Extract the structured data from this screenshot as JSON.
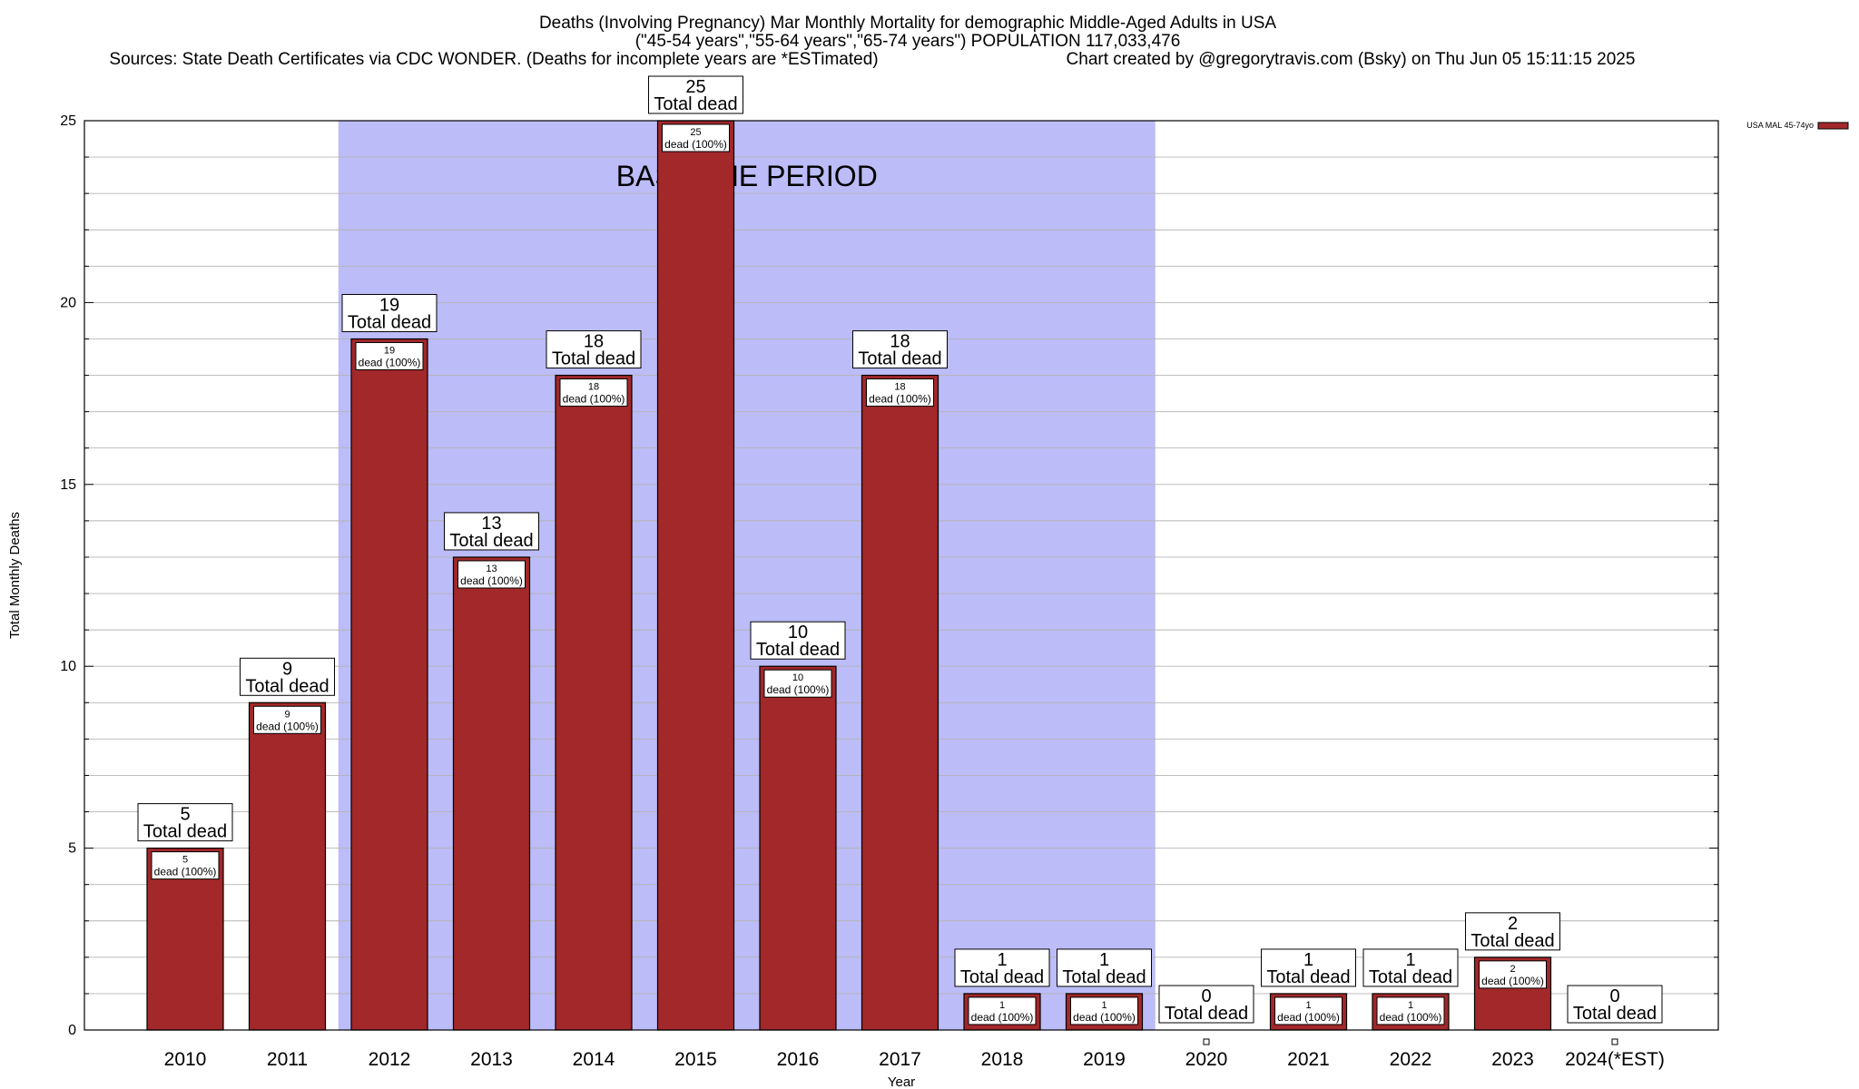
{
  "chart_data": {
    "type": "bar",
    "title_lines": [
      "Deaths (Involving Pregnancy) Mar Monthly Mortality for demographic Middle-Aged Adults in USA",
      "(\"45-54 years\",\"55-64 years\",\"65-74 years\") POPULATION 117,033,476"
    ],
    "sources_text": "Sources: State Death Certificates via CDC WONDER. (Deaths for incomplete years are *ESTimated)",
    "credit_text": "Chart created by @gregorytravis.com (Bsky) on Thu Jun 05 15:11:15 2025",
    "xlabel": "Year",
    "ylabel": "Total Monthly Deaths",
    "ylim": [
      0,
      25
    ],
    "yticks": [
      0,
      5,
      10,
      15,
      20,
      25
    ],
    "y_minor_step": 1,
    "categories": [
      "2010",
      "2011",
      "2012",
      "2013",
      "2014",
      "2015",
      "2016",
      "2017",
      "2018",
      "2019",
      "2020",
      "2021",
      "2022",
      "2023",
      "2024(*EST)"
    ],
    "series": [
      {
        "name": "USA MAL 45-74yo",
        "color": "#a2282a",
        "values": [
          5,
          9,
          19,
          13,
          18,
          25,
          10,
          18,
          1,
          1,
          0,
          1,
          1,
          2,
          0
        ]
      }
    ],
    "box_label": "Total dead",
    "inner_label": "dead (100%)",
    "baseline": {
      "label": "BASELINE PERIOD",
      "start": "2012",
      "end": "2019",
      "color": "#bcbcf8"
    },
    "legend_position": "top-right",
    "grid": true
  }
}
